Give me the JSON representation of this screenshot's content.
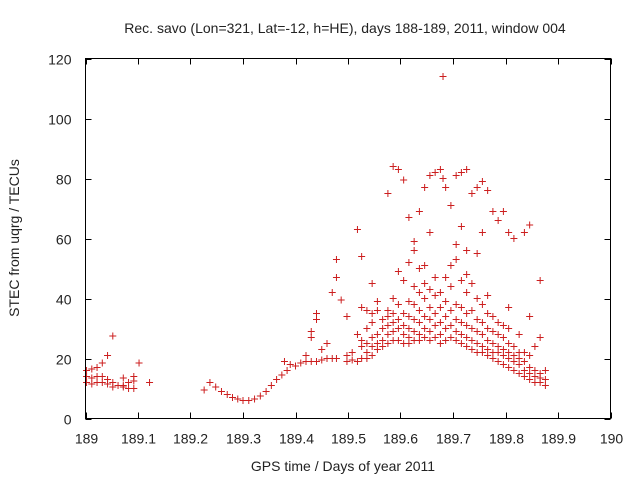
{
  "chart_data": {
    "type": "scatter",
    "title": "Rec. savo (Lon=321, Lat=-12, h=HE), days 188-189, 2011, window 004",
    "xlabel": "GPS time / Days of year 2011",
    "ylabel": "STEC from uqrg / TECUs",
    "xlim": [
      189,
      190
    ],
    "ylim": [
      0,
      120
    ],
    "x_ticks": [
      189,
      189.1,
      189.2,
      189.3,
      189.4,
      189.5,
      189.6,
      189.7,
      189.8,
      189.9,
      190
    ],
    "x_tick_labels": [
      "189",
      "189.1",
      "189.2",
      "189.3",
      "189.4",
      "189.5",
      "189.6",
      "189.7",
      "189.8",
      "189.9",
      "190"
    ],
    "y_ticks": [
      0,
      20,
      40,
      60,
      80,
      100,
      120
    ],
    "y_tick_labels": [
      "0",
      "20",
      "40",
      "60",
      "80",
      "100",
      "120"
    ],
    "marker": "+",
    "color": "#cc1f1f",
    "grid": false,
    "series": [
      {
        "name": "STEC",
        "points": [
          [
            189.002,
            16
          ],
          [
            189.002,
            14
          ],
          [
            189.002,
            12
          ],
          [
            189.012,
            16.5
          ],
          [
            189.012,
            13.5
          ],
          [
            189.012,
            11.5
          ],
          [
            189.022,
            17
          ],
          [
            189.022,
            14
          ],
          [
            189.022,
            12
          ],
          [
            189.032,
            18.5
          ],
          [
            189.032,
            14
          ],
          [
            189.032,
            12
          ],
          [
            189.042,
            21
          ],
          [
            189.042,
            13
          ],
          [
            189.042,
            11.5
          ],
          [
            189.052,
            27.5
          ],
          [
            189.052,
            12
          ],
          [
            189.052,
            10.5
          ],
          [
            189.062,
            11
          ],
          [
            189.072,
            13.5
          ],
          [
            189.072,
            11
          ],
          [
            189.072,
            10.5
          ],
          [
            189.082,
            12
          ],
          [
            189.082,
            10
          ],
          [
            189.092,
            14
          ],
          [
            189.092,
            12.5
          ],
          [
            189.092,
            10
          ],
          [
            189.102,
            18.5
          ],
          [
            189.122,
            12
          ],
          [
            189.226,
            9.5
          ],
          [
            189.237,
            12
          ],
          [
            189.248,
            10.5
          ],
          [
            189.259,
            9
          ],
          [
            189.27,
            8
          ],
          [
            189.28,
            7
          ],
          [
            189.29,
            6.5
          ],
          [
            189.3,
            6
          ],
          [
            189.311,
            6
          ],
          [
            189.322,
            6.5
          ],
          [
            189.333,
            7.5
          ],
          [
            189.344,
            9
          ],
          [
            189.354,
            11
          ],
          [
            189.364,
            13
          ],
          [
            189.374,
            14.5
          ],
          [
            189.384,
            16
          ],
          [
            189.379,
            19
          ],
          [
            189.39,
            18
          ],
          [
            189.4,
            17.5
          ],
          [
            189.41,
            18.5
          ],
          [
            189.42,
            19
          ],
          [
            189.42,
            21
          ],
          [
            189.43,
            19
          ],
          [
            189.43,
            27
          ],
          [
            189.43,
            29
          ],
          [
            189.44,
            19
          ],
          [
            189.44,
            33
          ],
          [
            189.44,
            35
          ],
          [
            189.45,
            19.5
          ],
          [
            189.45,
            23
          ],
          [
            189.46,
            20
          ],
          [
            189.46,
            25
          ],
          [
            189.47,
            20
          ],
          [
            189.47,
            42
          ],
          [
            189.478,
            20
          ],
          [
            189.478,
            47
          ],
          [
            189.478,
            53
          ],
          [
            189.487,
            39.5
          ],
          [
            189.498,
            19
          ],
          [
            189.498,
            21
          ],
          [
            189.498,
            34
          ],
          [
            189.508,
            19.5
          ],
          [
            189.508,
            22
          ],
          [
            189.518,
            19
          ],
          [
            189.518,
            28
          ],
          [
            189.518,
            63
          ],
          [
            189.526,
            20
          ],
          [
            189.526,
            24
          ],
          [
            189.526,
            26
          ],
          [
            189.526,
            37
          ],
          [
            189.526,
            54
          ],
          [
            189.536,
            20
          ],
          [
            189.536,
            22
          ],
          [
            189.536,
            25
          ],
          [
            189.536,
            30
          ],
          [
            189.536,
            36
          ],
          [
            189.546,
            21
          ],
          [
            189.546,
            24
          ],
          [
            189.546,
            27
          ],
          [
            189.546,
            32
          ],
          [
            189.546,
            35
          ],
          [
            189.546,
            45
          ],
          [
            189.556,
            23
          ],
          [
            189.556,
            25
          ],
          [
            189.556,
            28
          ],
          [
            189.556,
            36
          ],
          [
            189.556,
            39
          ],
          [
            189.566,
            24
          ],
          [
            189.566,
            26
          ],
          [
            189.566,
            30
          ],
          [
            189.566,
            33
          ],
          [
            189.576,
            25
          ],
          [
            189.576,
            28
          ],
          [
            189.576,
            31
          ],
          [
            189.576,
            34
          ],
          [
            189.576,
            36
          ],
          [
            189.576,
            75
          ],
          [
            189.586,
            26
          ],
          [
            189.586,
            29
          ],
          [
            189.586,
            32
          ],
          [
            189.586,
            35
          ],
          [
            189.586,
            40
          ],
          [
            189.586,
            84
          ],
          [
            189.596,
            26
          ],
          [
            189.596,
            30
          ],
          [
            189.596,
            33
          ],
          [
            189.596,
            38
          ],
          [
            189.596,
            49
          ],
          [
            189.596,
            83
          ],
          [
            189.606,
            25
          ],
          [
            189.606,
            28
          ],
          [
            189.606,
            31
          ],
          [
            189.606,
            35
          ],
          [
            189.606,
            46
          ],
          [
            189.606,
            79.5
          ],
          [
            189.616,
            25
          ],
          [
            189.616,
            27
          ],
          [
            189.616,
            30
          ],
          [
            189.616,
            34
          ],
          [
            189.616,
            39
          ],
          [
            189.616,
            52
          ],
          [
            189.616,
            67
          ],
          [
            189.626,
            26
          ],
          [
            189.626,
            29
          ],
          [
            189.626,
            33
          ],
          [
            189.626,
            38
          ],
          [
            189.626,
            44
          ],
          [
            189.626,
            56
          ],
          [
            189.626,
            59
          ],
          [
            189.636,
            26
          ],
          [
            189.636,
            28
          ],
          [
            189.636,
            32
          ],
          [
            189.636,
            36
          ],
          [
            189.636,
            42
          ],
          [
            189.636,
            50
          ],
          [
            189.636,
            69
          ],
          [
            189.646,
            27
          ],
          [
            189.646,
            30
          ],
          [
            189.646,
            34
          ],
          [
            189.646,
            40
          ],
          [
            189.646,
            45
          ],
          [
            189.646,
            51
          ],
          [
            189.646,
            77
          ],
          [
            189.656,
            26
          ],
          [
            189.656,
            29
          ],
          [
            189.656,
            33
          ],
          [
            189.656,
            37
          ],
          [
            189.656,
            43
          ],
          [
            189.656,
            62
          ],
          [
            189.656,
            81
          ],
          [
            189.666,
            27
          ],
          [
            189.666,
            31
          ],
          [
            189.666,
            35
          ],
          [
            189.666,
            41
          ],
          [
            189.666,
            47
          ],
          [
            189.666,
            82
          ],
          [
            189.676,
            25
          ],
          [
            189.676,
            28
          ],
          [
            189.676,
            32
          ],
          [
            189.676,
            37
          ],
          [
            189.676,
            42
          ],
          [
            189.676,
            83
          ],
          [
            189.681,
            80
          ],
          [
            189.681,
            114
          ],
          [
            189.686,
            26
          ],
          [
            189.686,
            30
          ],
          [
            189.686,
            34
          ],
          [
            189.686,
            39
          ],
          [
            189.686,
            47
          ],
          [
            189.686,
            77
          ],
          [
            189.696,
            27
          ],
          [
            189.696,
            31
          ],
          [
            189.696,
            36
          ],
          [
            189.696,
            44
          ],
          [
            189.696,
            51
          ],
          [
            189.696,
            71
          ],
          [
            189.706,
            26
          ],
          [
            189.706,
            29
          ],
          [
            189.706,
            33
          ],
          [
            189.706,
            38
          ],
          [
            189.706,
            53
          ],
          [
            189.706,
            58
          ],
          [
            189.706,
            81
          ],
          [
            189.716,
            25
          ],
          [
            189.716,
            28
          ],
          [
            189.716,
            32
          ],
          [
            189.716,
            37
          ],
          [
            189.716,
            46
          ],
          [
            189.716,
            64
          ],
          [
            189.716,
            82
          ],
          [
            189.726,
            24
          ],
          [
            189.726,
            27
          ],
          [
            189.726,
            31
          ],
          [
            189.726,
            35
          ],
          [
            189.726,
            42
          ],
          [
            189.726,
            48
          ],
          [
            189.726,
            56
          ],
          [
            189.726,
            83
          ],
          [
            189.736,
            23
          ],
          [
            189.736,
            26
          ],
          [
            189.736,
            30
          ],
          [
            189.736,
            36
          ],
          [
            189.736,
            45
          ],
          [
            189.736,
            75
          ],
          [
            189.746,
            22
          ],
          [
            189.746,
            25
          ],
          [
            189.746,
            29
          ],
          [
            189.746,
            33
          ],
          [
            189.746,
            40
          ],
          [
            189.746,
            55
          ],
          [
            189.746,
            77
          ],
          [
            189.756,
            22
          ],
          [
            189.756,
            24
          ],
          [
            189.756,
            28
          ],
          [
            189.756,
            32
          ],
          [
            189.756,
            38
          ],
          [
            189.756,
            62
          ],
          [
            189.756,
            79
          ],
          [
            189.766,
            21
          ],
          [
            189.766,
            23
          ],
          [
            189.766,
            26
          ],
          [
            189.766,
            30
          ],
          [
            189.766,
            35
          ],
          [
            189.766,
            41
          ],
          [
            189.766,
            76
          ],
          [
            189.776,
            20
          ],
          [
            189.776,
            22
          ],
          [
            189.776,
            25
          ],
          [
            189.776,
            29
          ],
          [
            189.776,
            34
          ],
          [
            189.776,
            69
          ],
          [
            189.786,
            19
          ],
          [
            189.786,
            22
          ],
          [
            189.786,
            24
          ],
          [
            189.786,
            28
          ],
          [
            189.786,
            32
          ],
          [
            189.786,
            66
          ],
          [
            189.796,
            18
          ],
          [
            189.796,
            21
          ],
          [
            189.796,
            23
          ],
          [
            189.796,
            27
          ],
          [
            189.796,
            31
          ],
          [
            189.796,
            69
          ],
          [
            189.806,
            17
          ],
          [
            189.806,
            20
          ],
          [
            189.806,
            22
          ],
          [
            189.806,
            25
          ],
          [
            189.806,
            30
          ],
          [
            189.806,
            37
          ],
          [
            189.806,
            62
          ],
          [
            189.816,
            16
          ],
          [
            189.816,
            19
          ],
          [
            189.816,
            21
          ],
          [
            189.816,
            24
          ],
          [
            189.816,
            60
          ],
          [
            189.826,
            15
          ],
          [
            189.826,
            18
          ],
          [
            189.826,
            20
          ],
          [
            189.826,
            22
          ],
          [
            189.826,
            28
          ],
          [
            189.836,
            14
          ],
          [
            189.836,
            16
          ],
          [
            189.836,
            19
          ],
          [
            189.836,
            22
          ],
          [
            189.836,
            62
          ],
          [
            189.846,
            13
          ],
          [
            189.846,
            15
          ],
          [
            189.846,
            17
          ],
          [
            189.846,
            21
          ],
          [
            189.846,
            34
          ],
          [
            189.846,
            64.5
          ],
          [
            189.856,
            12
          ],
          [
            189.856,
            14
          ],
          [
            189.856,
            16
          ],
          [
            189.856,
            24
          ],
          [
            189.866,
            12
          ],
          [
            189.866,
            13.5
          ],
          [
            189.866,
            15
          ],
          [
            189.866,
            27
          ],
          [
            189.866,
            46
          ],
          [
            189.876,
            11
          ],
          [
            189.876,
            13
          ],
          [
            189.876,
            16
          ]
        ]
      }
    ]
  }
}
